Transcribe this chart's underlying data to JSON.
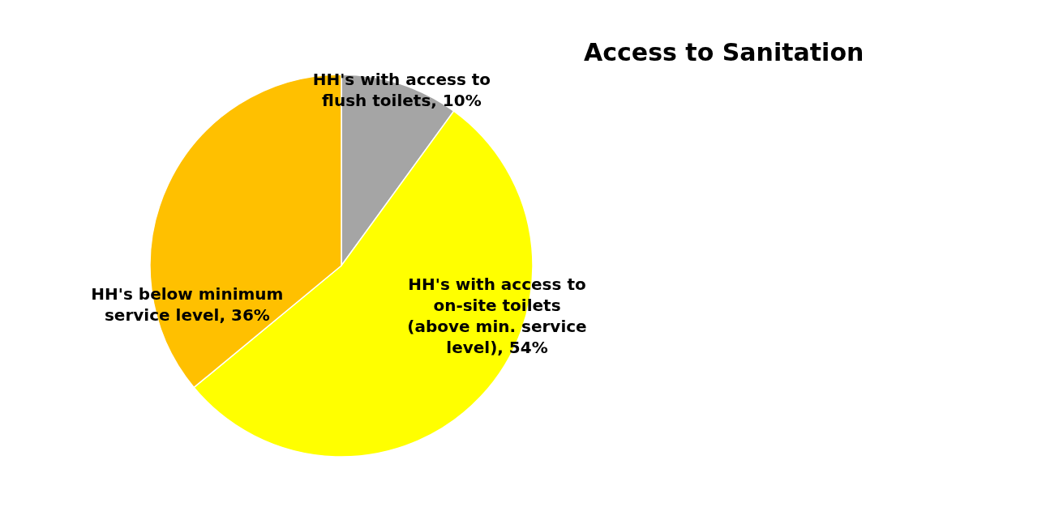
{
  "chart_data": {
    "type": "pie",
    "title": "Access to Sanitation",
    "categories": [
      "HH's with access to flush toilets",
      "HH's with access to on-site toilets (above min. service level)",
      "HH's below minimum service level"
    ],
    "values": [
      10,
      54,
      36
    ],
    "value_labels": [
      "10%",
      "54%",
      "36%"
    ],
    "colors": [
      "#a5a5a5",
      "#ffff00",
      "#ffc000"
    ],
    "legend": false
  }
}
